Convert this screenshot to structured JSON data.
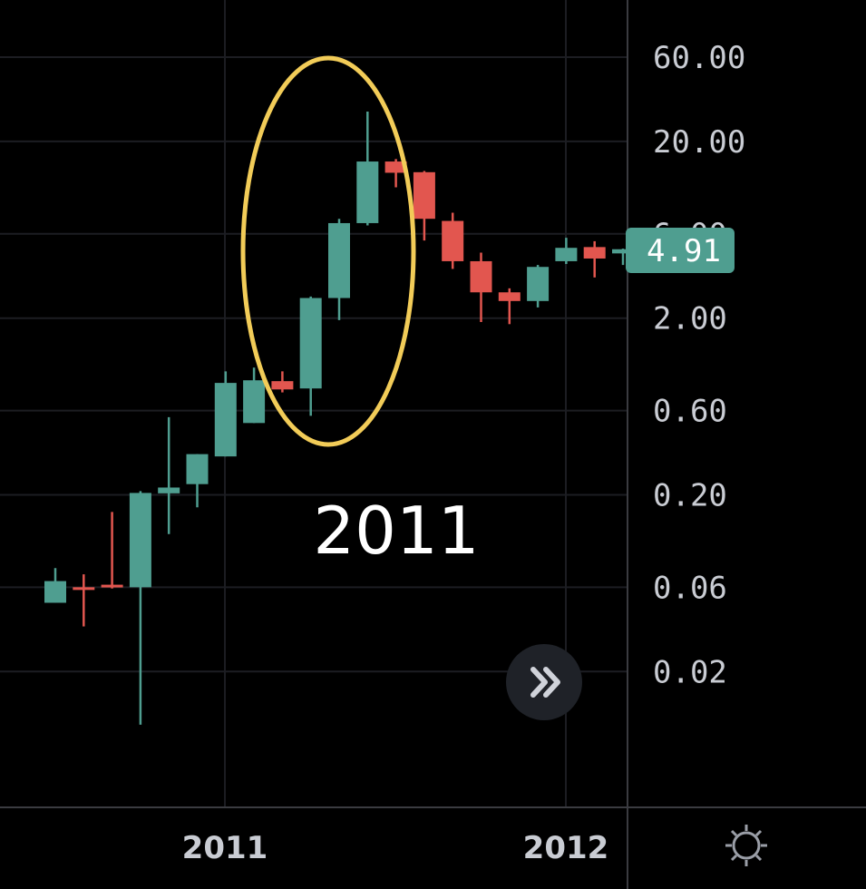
{
  "chart_data": {
    "type": "candlestick",
    "y_scale": "log",
    "y_ticks": [
      "60.00",
      "20.00",
      "6.00",
      "2.00",
      "0.60",
      "0.20",
      "0.06",
      "0.02"
    ],
    "x_ticks": [
      "2011",
      "2012"
    ],
    "last_price": "4.91",
    "annotation": "2011",
    "grid": true,
    "colors": {
      "up": "#4f9e90",
      "down": "#e2564f",
      "highlight_ellipse": "#f2cc58",
      "background": "#000000",
      "grid": "#1c1d22",
      "text": "#c9ccd3"
    },
    "candles": [
      {
        "o": 0.049,
        "h": 0.077,
        "l": 0.049,
        "c": 0.065
      },
      {
        "o": 0.06,
        "h": 0.071,
        "l": 0.036,
        "c": 0.059
      },
      {
        "o": 0.062,
        "h": 0.16,
        "l": 0.059,
        "c": 0.06
      },
      {
        "o": 0.06,
        "h": 0.21,
        "l": 0.01,
        "c": 0.205
      },
      {
        "o": 0.204,
        "h": 0.55,
        "l": 0.12,
        "c": 0.22
      },
      {
        "o": 0.23,
        "h": 0.34,
        "l": 0.17,
        "c": 0.34
      },
      {
        "o": 0.33,
        "h": 1.0,
        "l": 0.33,
        "c": 0.86
      },
      {
        "o": 0.51,
        "h": 1.05,
        "l": 0.51,
        "c": 0.89
      },
      {
        "o": 0.88,
        "h": 1.0,
        "l": 0.76,
        "c": 0.79
      },
      {
        "o": 0.8,
        "h": 2.65,
        "l": 0.56,
        "c": 2.6
      },
      {
        "o": 2.6,
        "h": 7.3,
        "l": 1.95,
        "c": 6.9
      },
      {
        "o": 6.9,
        "h": 29.5,
        "l": 6.7,
        "c": 15.4
      },
      {
        "o": 15.4,
        "h": 15.9,
        "l": 11.0,
        "c": 13.3
      },
      {
        "o": 13.4,
        "h": 13.6,
        "l": 5.5,
        "c": 7.3
      },
      {
        "o": 7.1,
        "h": 7.9,
        "l": 3.8,
        "c": 4.2
      },
      {
        "o": 4.2,
        "h": 4.7,
        "l": 1.9,
        "c": 2.8
      },
      {
        "o": 2.8,
        "h": 2.95,
        "l": 1.85,
        "c": 2.5
      },
      {
        "o": 2.5,
        "h": 4.0,
        "l": 2.3,
        "c": 3.9
      },
      {
        "o": 4.2,
        "h": 5.7,
        "l": 4.05,
        "c": 5.0
      },
      {
        "o": 5.05,
        "h": 5.45,
        "l": 3.4,
        "c": 4.35
      },
      {
        "o": 4.65,
        "h": 4.95,
        "l": 4.0,
        "c": 4.91
      }
    ]
  }
}
